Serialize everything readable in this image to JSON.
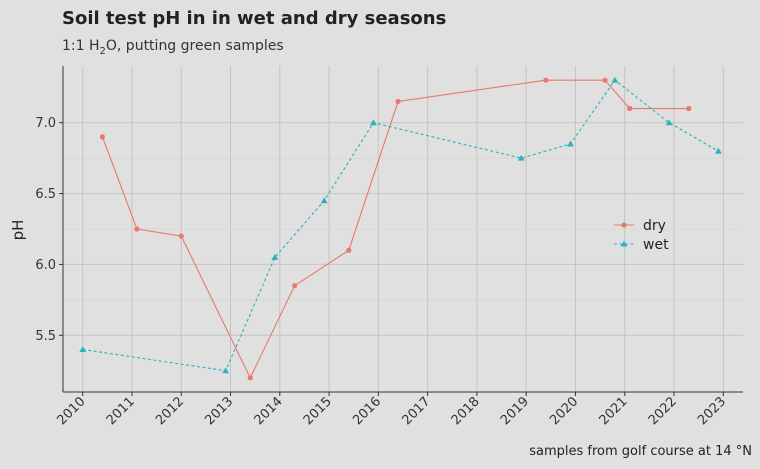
{
  "title": "Soil test pH in in wet and dry seasons",
  "subtitle_pre": "1:1 H",
  "subtitle_sub": "2",
  "subtitle_post": "O, putting green samples",
  "caption": "samples from golf course at 14 °N",
  "chart_data": {
    "type": "line",
    "title": "Soil test pH in in wet and dry seasons",
    "xlabel": "",
    "ylabel": "pH",
    "xlim": [
      2009.6,
      2023.4
    ],
    "ylim": [
      5.1,
      7.4
    ],
    "x_ticks": [
      2010,
      2011,
      2012,
      2013,
      2014,
      2015,
      2016,
      2017,
      2018,
      2019,
      2020,
      2021,
      2022,
      2023
    ],
    "y_ticks": [
      5.5,
      6.0,
      6.5,
      7.0
    ],
    "y_tick_labels": [
      "5.5",
      "6.0",
      "6.5",
      "7.0"
    ],
    "grid": true,
    "legend_position": "right",
    "series": [
      {
        "name": "dry",
        "color": "#e8776c",
        "line_style": "solid",
        "marker": "circle",
        "x": [
          2010.4,
          2011.1,
          2012.0,
          2013.4,
          2014.3,
          2015.4,
          2016.4,
          2019.4,
          2020.6,
          2021.1,
          2022.3
        ],
        "y": [
          6.9,
          6.25,
          6.2,
          5.2,
          5.85,
          6.1,
          7.15,
          7.3,
          7.3,
          7.1,
          7.1
        ]
      },
      {
        "name": "wet",
        "color": "#2bb3bd",
        "line_style": "dashed",
        "marker": "triangle",
        "x": [
          2010.0,
          2012.9,
          2013.9,
          2014.9,
          2015.9,
          2018.9,
          2019.9,
          2020.8,
          2021.9,
          2022.9
        ],
        "y": [
          5.4,
          5.25,
          6.05,
          6.45,
          7.0,
          6.75,
          6.85,
          7.3,
          7.0,
          6.8
        ]
      }
    ]
  }
}
